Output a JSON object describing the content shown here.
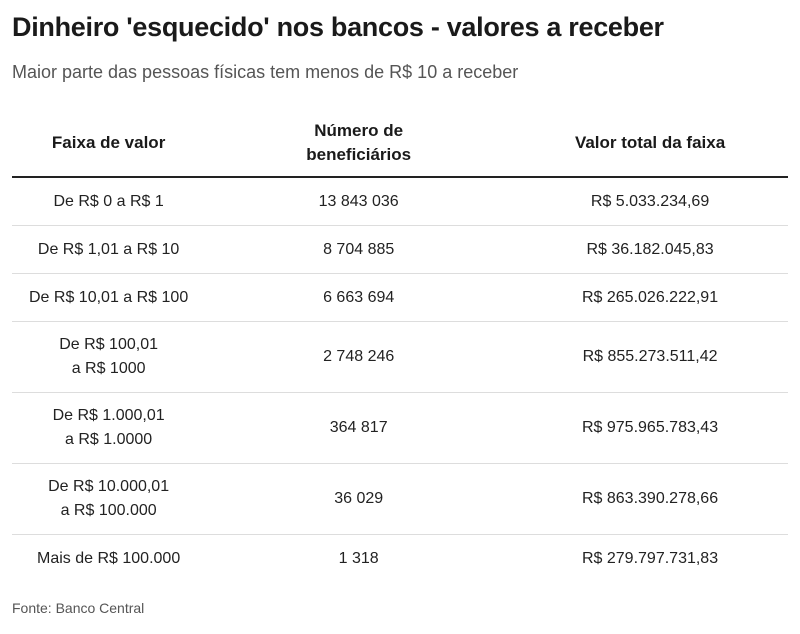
{
  "title": "Dinheiro 'esquecido' nos bancos - valores a receber",
  "subtitle": "Maior parte das pessoas físicas tem menos de R$ 10 a receber",
  "source": "Fonte: Banco Central",
  "chart_data": {
    "type": "table",
    "columns": [
      "Faixa de valor",
      "Número de beneficiários",
      "Valor total da faixa"
    ],
    "header_lines": [
      [
        "Faixa de valor"
      ],
      [
        "Número de",
        "beneficiários"
      ],
      [
        "Valor total da faixa"
      ]
    ],
    "rows": [
      {
        "faixa": [
          "De R$ 0 a R$ 1"
        ],
        "beneficiarios": "13 843 036",
        "valor": "R$ 5.033.234,69"
      },
      {
        "faixa": [
          "De R$ 1,01 a R$ 10"
        ],
        "beneficiarios": "8 704 885",
        "valor": "R$ 36.182.045,83"
      },
      {
        "faixa": [
          "De R$ 10,01 a R$ 100"
        ],
        "beneficiarios": "6 663 694",
        "valor": "R$ 265.026.222,91"
      },
      {
        "faixa": [
          "De R$ 100,01",
          "a R$ 1000"
        ],
        "beneficiarios": "2 748 246",
        "valor": "R$ 855.273.511,42"
      },
      {
        "faixa": [
          "De R$ 1.000,01",
          "a R$ 1.0000"
        ],
        "beneficiarios": "364 817",
        "valor": "R$ 975.965.783,43"
      },
      {
        "faixa": [
          "De R$ 10.000,01",
          "a R$ 100.000"
        ],
        "beneficiarios": "36 029",
        "valor": "R$ 863.390.278,66"
      },
      {
        "faixa": [
          "Mais de R$ 100.000"
        ],
        "beneficiarios": "1 318",
        "valor": "R$ 279.797.731,83"
      }
    ]
  }
}
